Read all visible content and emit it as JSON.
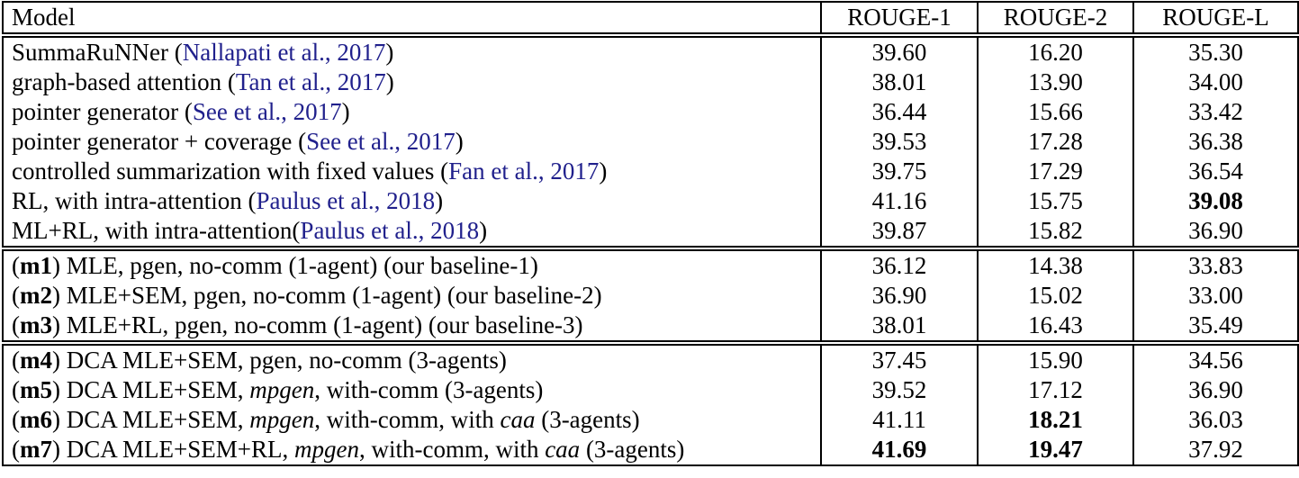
{
  "colors": {
    "citation": "#20208c",
    "border": "#000000",
    "text": "#000000",
    "background": "#ffffff"
  },
  "header": {
    "columns": [
      {
        "label": "Model"
      },
      {
        "label": "ROUGE-1"
      },
      {
        "label": "ROUGE-2"
      },
      {
        "label": "ROUGE-L"
      }
    ]
  },
  "sections": [
    {
      "name": "prior-work",
      "rows": [
        {
          "model": [
            {
              "t": "SummaRuNNer (",
              "s": "p"
            },
            {
              "t": "Nallapati et al., 2017",
              "s": "c"
            },
            {
              "t": ")",
              "s": "p"
            }
          ],
          "scores": [
            {
              "v": "39.60",
              "b": false
            },
            {
              "v": "16.20",
              "b": false
            },
            {
              "v": "35.30",
              "b": false
            }
          ]
        },
        {
          "model": [
            {
              "t": "graph-based attention (",
              "s": "p"
            },
            {
              "t": "Tan et al., 2017",
              "s": "c"
            },
            {
              "t": ")",
              "s": "p"
            }
          ],
          "scores": [
            {
              "v": "38.01",
              "b": false
            },
            {
              "v": "13.90",
              "b": false
            },
            {
              "v": "34.00",
              "b": false
            }
          ]
        },
        {
          "model": [
            {
              "t": "pointer generator (",
              "s": "p"
            },
            {
              "t": "See et al., 2017",
              "s": "c"
            },
            {
              "t": ")",
              "s": "p"
            }
          ],
          "scores": [
            {
              "v": "36.44",
              "b": false
            },
            {
              "v": "15.66",
              "b": false
            },
            {
              "v": "33.42",
              "b": false
            }
          ]
        },
        {
          "model": [
            {
              "t": "pointer generator + coverage (",
              "s": "p"
            },
            {
              "t": "See et al., 2017",
              "s": "c"
            },
            {
              "t": ")",
              "s": "p"
            }
          ],
          "scores": [
            {
              "v": "39.53",
              "b": false
            },
            {
              "v": "17.28",
              "b": false
            },
            {
              "v": "36.38",
              "b": false
            }
          ]
        },
        {
          "model": [
            {
              "t": "controlled summarization with fixed values (",
              "s": "p"
            },
            {
              "t": "Fan et al., 2017",
              "s": "c"
            },
            {
              "t": ")",
              "s": "p"
            }
          ],
          "scores": [
            {
              "v": "39.75",
              "b": false
            },
            {
              "v": "17.29",
              "b": false
            },
            {
              "v": "36.54",
              "b": false
            }
          ]
        },
        {
          "model": [
            {
              "t": "RL, with intra-attention (",
              "s": "p"
            },
            {
              "t": "Paulus et al., 2018",
              "s": "c"
            },
            {
              "t": ")",
              "s": "p"
            }
          ],
          "scores": [
            {
              "v": "41.16",
              "b": false
            },
            {
              "v": "15.75",
              "b": false
            },
            {
              "v": "39.08",
              "b": true
            }
          ]
        },
        {
          "model": [
            {
              "t": "ML+RL, with intra-attention(",
              "s": "p"
            },
            {
              "t": "Paulus et al., 2018",
              "s": "c"
            },
            {
              "t": ")",
              "s": "p"
            }
          ],
          "scores": [
            {
              "v": "39.87",
              "b": false
            },
            {
              "v": "15.82",
              "b": false
            },
            {
              "v": "36.90",
              "b": false
            }
          ]
        }
      ]
    },
    {
      "name": "single-agent-baselines",
      "rows": [
        {
          "model": [
            {
              "t": "(",
              "s": "p"
            },
            {
              "t": "m1",
              "s": "b"
            },
            {
              "t": ") MLE, pgen, no-comm (1-agent) (our baseline-1)",
              "s": "p"
            }
          ],
          "scores": [
            {
              "v": "36.12",
              "b": false
            },
            {
              "v": "14.38",
              "b": false
            },
            {
              "v": "33.83",
              "b": false
            }
          ]
        },
        {
          "model": [
            {
              "t": "(",
              "s": "p"
            },
            {
              "t": "m2",
              "s": "b"
            },
            {
              "t": ") MLE+SEM, pgen, no-comm (1-agent) (our baseline-2)",
              "s": "p"
            }
          ],
          "scores": [
            {
              "v": "36.90",
              "b": false
            },
            {
              "v": "15.02",
              "b": false
            },
            {
              "v": "33.00",
              "b": false
            }
          ]
        },
        {
          "model": [
            {
              "t": "(",
              "s": "p"
            },
            {
              "t": "m3",
              "s": "b"
            },
            {
              "t": ") MLE+RL, pgen, no-comm (1-agent) (our baseline-3)",
              "s": "p"
            }
          ],
          "scores": [
            {
              "v": "38.01",
              "b": false
            },
            {
              "v": "16.43",
              "b": false
            },
            {
              "v": "35.49",
              "b": false
            }
          ]
        }
      ]
    },
    {
      "name": "multi-agent-models",
      "rows": [
        {
          "model": [
            {
              "t": "(",
              "s": "p"
            },
            {
              "t": "m4",
              "s": "b"
            },
            {
              "t": ") DCA MLE+SEM, pgen, no-comm (3-agents)",
              "s": "p"
            }
          ],
          "scores": [
            {
              "v": "37.45",
              "b": false
            },
            {
              "v": "15.90",
              "b": false
            },
            {
              "v": "34.56",
              "b": false
            }
          ]
        },
        {
          "model": [
            {
              "t": "(",
              "s": "p"
            },
            {
              "t": "m5",
              "s": "b"
            },
            {
              "t": ") DCA MLE+SEM, ",
              "s": "p"
            },
            {
              "t": "mpgen",
              "s": "i"
            },
            {
              "t": ", with-comm (3-agents)",
              "s": "p"
            }
          ],
          "scores": [
            {
              "v": "39.52",
              "b": false
            },
            {
              "v": "17.12",
              "b": false
            },
            {
              "v": "36.90",
              "b": false
            }
          ]
        },
        {
          "model": [
            {
              "t": "(",
              "s": "p"
            },
            {
              "t": "m6",
              "s": "b"
            },
            {
              "t": ") DCA MLE+SEM, ",
              "s": "p"
            },
            {
              "t": "mpgen",
              "s": "i"
            },
            {
              "t": ", with-comm, with ",
              "s": "p"
            },
            {
              "t": "caa",
              "s": "i"
            },
            {
              "t": " (3-agents)",
              "s": "p"
            }
          ],
          "scores": [
            {
              "v": "41.11",
              "b": false
            },
            {
              "v": "18.21",
              "b": true
            },
            {
              "v": "36.03",
              "b": false
            }
          ]
        },
        {
          "model": [
            {
              "t": "(",
              "s": "p"
            },
            {
              "t": "m7",
              "s": "b"
            },
            {
              "t": ") DCA MLE+SEM+RL, ",
              "s": "p"
            },
            {
              "t": "mpgen",
              "s": "i"
            },
            {
              "t": ", with-comm, with ",
              "s": "p"
            },
            {
              "t": "caa",
              "s": "i"
            },
            {
              "t": " (3-agents)",
              "s": "p"
            }
          ],
          "scores": [
            {
              "v": "41.69",
              "b": true
            },
            {
              "v": "19.47",
              "b": true
            },
            {
              "v": "37.92",
              "b": false
            }
          ]
        }
      ]
    }
  ]
}
